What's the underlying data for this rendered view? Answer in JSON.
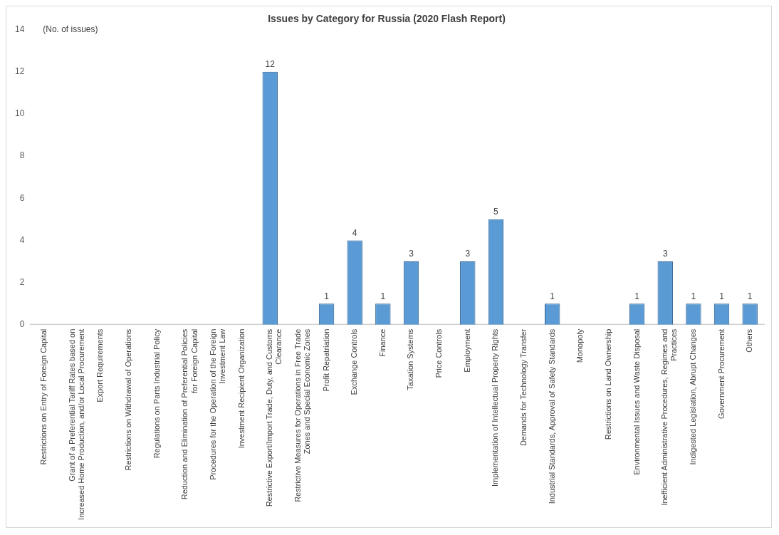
{
  "chart_data": {
    "type": "bar",
    "title": "Issues by Category for Russia (2020 Flash Report)",
    "ylabel": "(No. of issues)",
    "categories": [
      "Restrictions on Entry of Foreign Capital",
      "Grant of a Preferential Tariff Rates based on Increased Home Production, and/or Local Procurement",
      "Export Requirements",
      "Restrictions on Withdrawal of Operations",
      "Regulations on Parts Industrial Policy",
      "Reduction and Elimination of Preferential Policies for Foreign Capital",
      "Procedures for the Operation of the Foreign Investment Law",
      "Investment Recipient Organization",
      "Restrictive Export/Import Trade, Duty, and Customs Clearance",
      "Restrictive Measures for Operations in Free Trade Zones and Special Economic Zones",
      "Profit Repatriation",
      "Exchange Controls",
      "Finance",
      "Taxation Systems",
      "Price Controls",
      "Employment",
      "Implementation of Intellectual Property Rights",
      "Demands for Technology Transfer",
      "Industrial Standards, Approval of Safety Standards",
      "Monopoly",
      "Restrictions on Land Ownership",
      "Environmental Issues and Waste Disposal",
      "Inefficient Administrative Procedures, Regimes and Practices",
      "Indigested Legislation, Abrupt Changes",
      "Government Procurement",
      "Others"
    ],
    "values": [
      0,
      0,
      0,
      0,
      0,
      0,
      0,
      0,
      12,
      0,
      1,
      4,
      1,
      3,
      0,
      3,
      5,
      0,
      1,
      0,
      0,
      1,
      3,
      1,
      1,
      1
    ],
    "value_labels": [
      null,
      null,
      null,
      null,
      null,
      null,
      null,
      null,
      "12",
      null,
      "1",
      "4",
      "1",
      "3",
      null,
      "3",
      "5",
      null,
      "1",
      null,
      null,
      "1",
      "3",
      "1",
      "1",
      "1"
    ],
    "color": "#5b9bd5",
    "ylim": [
      0,
      14
    ],
    "yticks": [
      0,
      2,
      4,
      6,
      8,
      10,
      12,
      14
    ],
    "grid": false,
    "legend": false
  }
}
